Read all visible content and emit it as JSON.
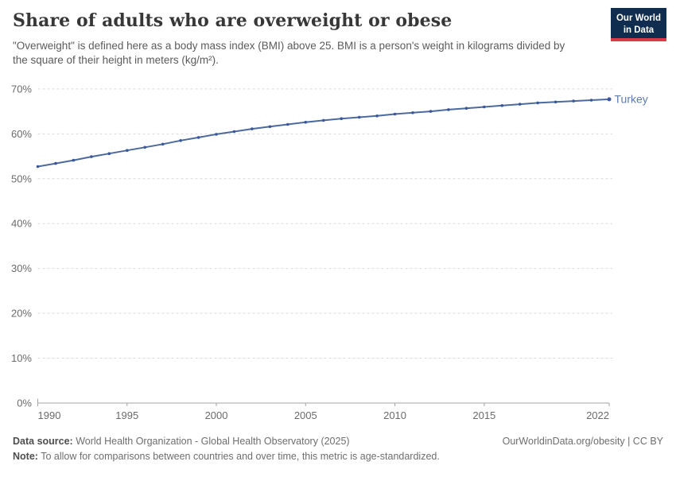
{
  "header": {
    "title": "Share of adults who are overweight or obese",
    "subtitle": "\"Overweight\" is defined here as a body mass index (BMI) above 25. BMI is a person's weight in kilograms divided by the square of their height in meters (kg/m²).",
    "logo": {
      "line1": "Our World",
      "line2": "in Data",
      "bg_color": "#102d50",
      "accent_color": "#d73a49"
    }
  },
  "chart_data": {
    "type": "line",
    "title": "Share of adults who are overweight or obese",
    "x": [
      1990,
      1991,
      1992,
      1993,
      1994,
      1995,
      1996,
      1997,
      1998,
      1999,
      2000,
      2001,
      2002,
      2003,
      2004,
      2005,
      2006,
      2007,
      2008,
      2009,
      2010,
      2011,
      2012,
      2013,
      2014,
      2015,
      2016,
      2017,
      2018,
      2019,
      2020,
      2021,
      2022
    ],
    "series": [
      {
        "name": "Turkey",
        "color": "#4c6a9c",
        "dot_color": "#3a589b",
        "label_color": "#5d7ca9",
        "values": [
          52.7,
          53.4,
          54.1,
          54.9,
          55.6,
          56.3,
          57.0,
          57.7,
          58.5,
          59.2,
          59.9,
          60.5,
          61.1,
          61.6,
          62.1,
          62.6,
          63.0,
          63.4,
          63.7,
          64.0,
          64.4,
          64.7,
          65.0,
          65.4,
          65.7,
          66.0,
          66.3,
          66.6,
          66.9,
          67.1,
          67.3,
          67.5,
          67.7
        ]
      }
    ],
    "ylim": [
      0,
      70
    ],
    "yticks": [
      0,
      10,
      20,
      30,
      40,
      50,
      60,
      70
    ],
    "ytick_suffix": "%",
    "xticks": [
      1990,
      1995,
      2000,
      2005,
      2010,
      2015,
      2022
    ],
    "xlabel": "",
    "ylabel": "",
    "grid": "horizontal-dashed",
    "legend_position": "end-of-line-label",
    "colors": {
      "gridline": "#d9d9d9",
      "axis": "#a3a3a3",
      "tick_text": "#6b6b6b"
    }
  },
  "footer": {
    "data_source_label": "Data source:",
    "data_source_text": " World Health Organization - Global Health Observatory (2025)",
    "note_label": "Note:",
    "note_text": " To allow for comparisons between countries and over time, this metric is age-standardized.",
    "attribution": "OurWorldinData.org/obesity | CC BY"
  }
}
